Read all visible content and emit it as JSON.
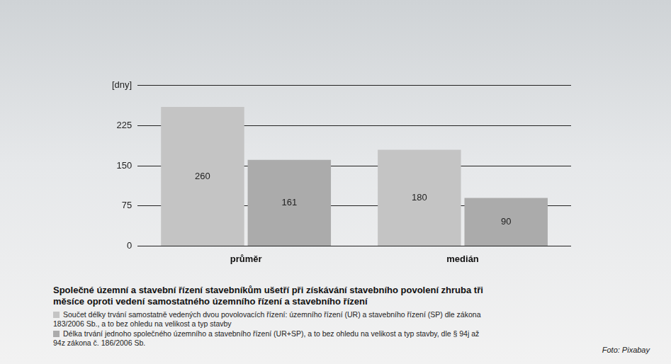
{
  "chart_data": {
    "type": "bar",
    "title": "Společné územní a stavební řízení stavebníkům ušetří při získávání stavebního povolení zhruba tři měsíce oproti vedení samostatného územního řízení a stavebního řízení",
    "categories": [
      "průměr",
      "medián"
    ],
    "series": [
      {
        "name": "Součet délky trvání samostatně vedených dvou povolovacích řízení: územního řízení (UR) a stavebního řízení (SP) dle zákona 183/2006 Sb., a to bez ohledu na velikost a typ stavby",
        "color": "#c4c4c4",
        "values": [
          260,
          180
        ]
      },
      {
        "name": "Délka trvání jednoho společného územního a stavebního řízení (UR+SP), a to bez ohledu na velikost a typ stavby, dle § 94j až 94z zákona č. 186/2006 Sb.",
        "color": "#ababab",
        "values": [
          161,
          90
        ]
      }
    ],
    "ylim": [
      0,
      300
    ],
    "yticks": [
      0,
      75,
      150,
      225,
      {
        "value": 300,
        "label": "[dny]"
      }
    ],
    "grid": true,
    "data_labels": true,
    "legend": "bottom",
    "annotations": [
      "Foto: Pixabay"
    ]
  }
}
